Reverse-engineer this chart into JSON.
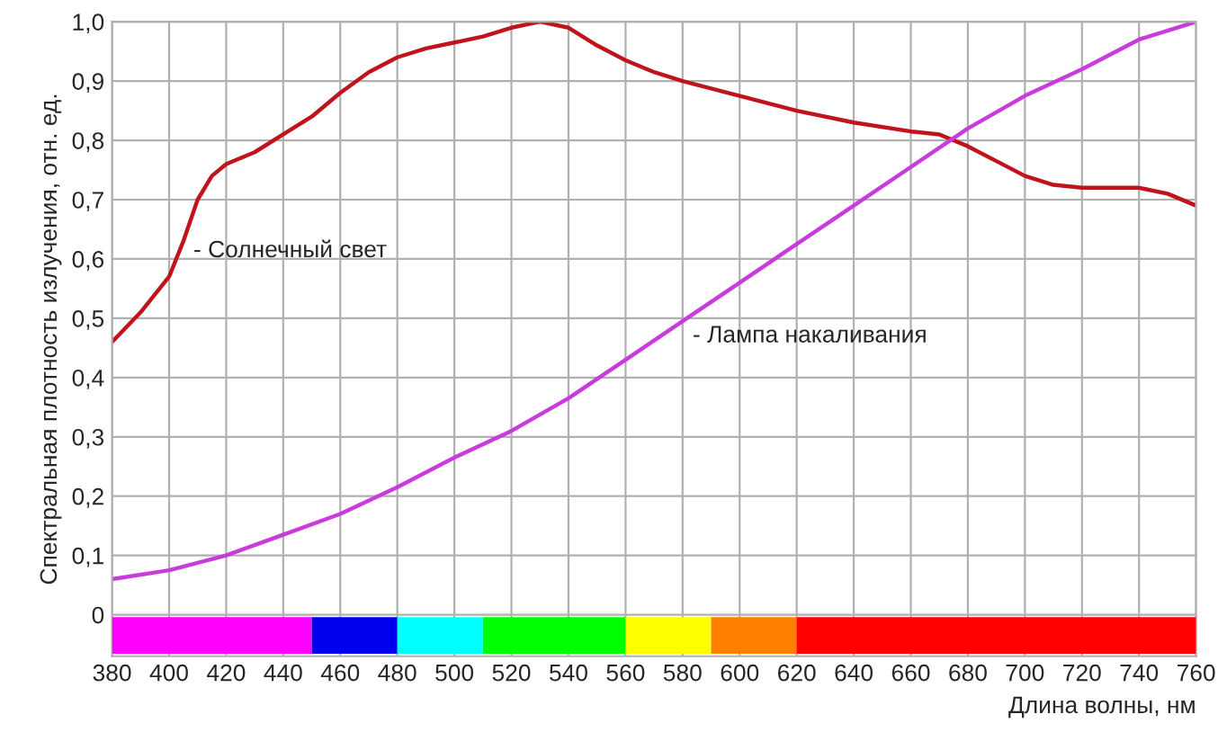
{
  "chart_data": {
    "type": "line",
    "xlabel": "Длина волны, нм",
    "ylabel": "Спектральная плотность излучения, отн. ед.",
    "xlim": [
      380,
      760
    ],
    "xticks": [
      380,
      400,
      420,
      440,
      460,
      480,
      500,
      520,
      540,
      560,
      580,
      600,
      620,
      640,
      660,
      680,
      700,
      720,
      740,
      760
    ],
    "ylim": [
      -0.07,
      1.0
    ],
    "yticks": [
      {
        "value": 0,
        "label": "0"
      },
      {
        "value": 0.1,
        "label": "0,1"
      },
      {
        "value": 0.2,
        "label": "0,2"
      },
      {
        "value": 0.3,
        "label": "0,3"
      },
      {
        "value": 0.4,
        "label": "0,4"
      },
      {
        "value": 0.5,
        "label": "0,5"
      },
      {
        "value": 0.6,
        "label": "0,6"
      },
      {
        "value": 0.7,
        "label": "0,7"
      },
      {
        "value": 0.8,
        "label": "0,8"
      },
      {
        "value": 0.9,
        "label": "0,9"
      },
      {
        "value": 1.0,
        "label": "1,0"
      }
    ],
    "bands": [
      {
        "axis": "x",
        "from": 380,
        "to": 450,
        "color": "#ff00ff"
      },
      {
        "axis": "x",
        "from": 450,
        "to": 480,
        "color": "#0000ee"
      },
      {
        "axis": "x",
        "from": 480,
        "to": 510,
        "color": "#00ffff"
      },
      {
        "axis": "x",
        "from": 510,
        "to": 560,
        "color": "#00ff00"
      },
      {
        "axis": "x",
        "from": 560,
        "to": 590,
        "color": "#ffff00"
      },
      {
        "axis": "x",
        "from": 590,
        "to": 620,
        "color": "#ff8000"
      },
      {
        "axis": "x",
        "from": 620,
        "to": 760,
        "color": "#ff0000"
      }
    ],
    "grid": true,
    "legend": false,
    "marker": "none",
    "line_style": "solid",
    "series": [
      {
        "name": "- Солнечный свет",
        "color": "#c0141c",
        "x": [
          380,
          390,
          400,
          405,
          410,
          415,
          420,
          430,
          440,
          450,
          460,
          470,
          480,
          490,
          500,
          510,
          520,
          530,
          540,
          550,
          560,
          570,
          580,
          600,
          620,
          640,
          660,
          670,
          680,
          690,
          700,
          710,
          720,
          740,
          750,
          760
        ],
        "values": [
          0.46,
          0.51,
          0.57,
          0.63,
          0.7,
          0.74,
          0.76,
          0.78,
          0.81,
          0.84,
          0.88,
          0.915,
          0.94,
          0.955,
          0.965,
          0.975,
          0.99,
          1.0,
          0.99,
          0.96,
          0.935,
          0.915,
          0.9,
          0.875,
          0.85,
          0.83,
          0.815,
          0.81,
          0.79,
          0.765,
          0.74,
          0.725,
          0.72,
          0.72,
          0.71,
          0.69
        ]
      },
      {
        "name": "- Лампа накаливания",
        "color": "#c83cdc",
        "x": [
          380,
          400,
          420,
          440,
          460,
          480,
          500,
          520,
          540,
          560,
          580,
          600,
          620,
          640,
          660,
          680,
          700,
          720,
          740,
          760
        ],
        "values": [
          0.06,
          0.075,
          0.1,
          0.135,
          0.17,
          0.215,
          0.265,
          0.31,
          0.365,
          0.43,
          0.495,
          0.56,
          0.625,
          0.69,
          0.755,
          0.82,
          0.875,
          0.92,
          0.97,
          1.0
        ]
      }
    ]
  }
}
